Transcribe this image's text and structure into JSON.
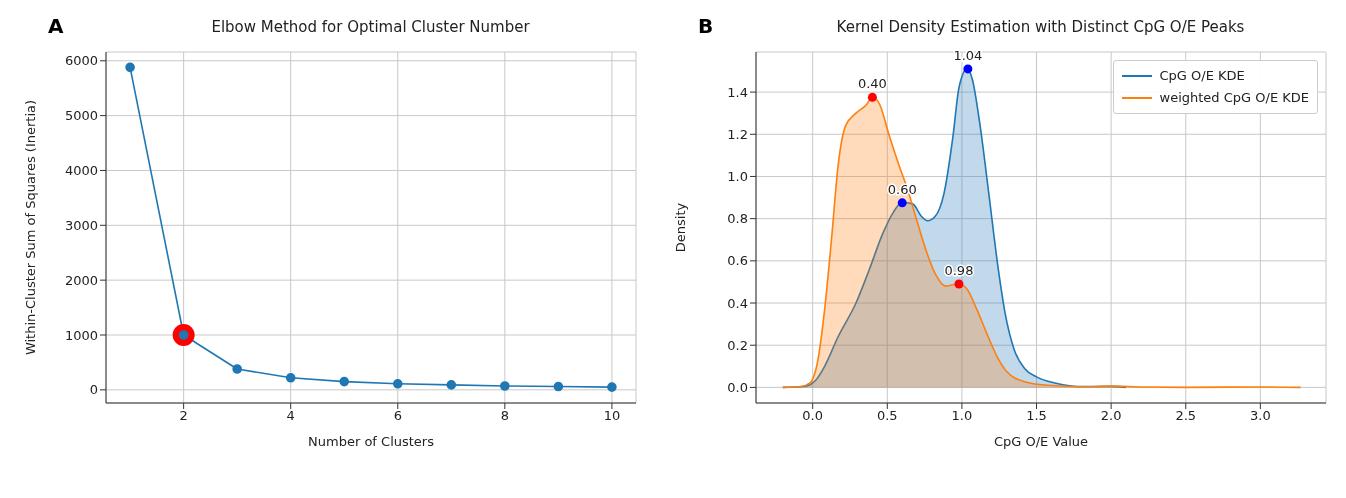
{
  "chart_data": [
    {
      "type": "line",
      "title": "Elbow Method for Optimal Cluster Number",
      "xlabel": "Number of Clusters",
      "ylabel": "Within-Cluster Sum of Squares (Inertia)",
      "annotations": [
        "A"
      ],
      "xlim": [
        0.55,
        10.45
      ],
      "xticks": [
        2,
        4,
        6,
        8,
        10
      ],
      "ylim": [
        -240,
        6160
      ],
      "yticks": [
        0,
        1000,
        2000,
        3000,
        4000,
        5000,
        6000
      ],
      "grid": true,
      "legend": false,
      "marker": "circle",
      "series": [
        {
          "type": "scatter",
          "color": "#ff0000",
          "x": [
            2
          ],
          "values": [
            1000
          ]
        },
        {
          "type": "line",
          "color": "#1f77b4",
          "x": [
            1,
            2,
            3,
            4,
            5,
            6,
            7,
            8,
            9,
            10
          ],
          "values": [
            5880,
            1000,
            380,
            220,
            150,
            110,
            90,
            70,
            60,
            50
          ]
        }
      ]
    },
    {
      "type": "area",
      "title": "Kernel Density Estimation with Distinct CpG O/E Peaks",
      "xlabel": "CpG O/E Value",
      "ylabel": "Density",
      "annotations": [
        "B",
        {
          "text": "0.60",
          "x": 0.6,
          "y": 0.875
        },
        {
          "text": "1.04",
          "x": 1.04,
          "y": 1.51
        },
        {
          "text": "0.40",
          "x": 0.4,
          "y": 1.375
        },
        {
          "text": "0.98",
          "x": 0.98,
          "y": 0.49
        }
      ],
      "xlim": [
        -0.38,
        3.44
      ],
      "xticks": [
        {
          "value": 0,
          "label": "0.0"
        },
        0.5,
        {
          "value": 1,
          "label": "1.0"
        },
        1.5,
        {
          "value": 2,
          "label": "2.0"
        },
        2.5,
        {
          "value": 3,
          "label": "3.0"
        }
      ],
      "ylim": [
        -0.074,
        1.59
      ],
      "yticks": [
        {
          "value": 0,
          "label": "0.0"
        },
        0.2,
        0.4,
        0.6,
        0.8,
        {
          "value": 1,
          "label": "1.0"
        },
        1.2,
        1.4
      ],
      "grid": true,
      "legend": "top right",
      "series": [
        {
          "type": "area",
          "name": "CpG O/E KDE",
          "color": "#1f77b4",
          "x": [
            -0.2,
            -0.06,
            0.02,
            0.08,
            0.17,
            0.29,
            0.38,
            0.47,
            0.54,
            0.6,
            0.67,
            0.73,
            0.77,
            0.82,
            0.88,
            0.94,
            0.98,
            1.035,
            1.07,
            1.12,
            1.18,
            1.24,
            1.29,
            1.35,
            1.42,
            1.5,
            1.63,
            1.81,
            2.0,
            2.1
          ],
          "values": [
            0,
            0.004,
            0.034,
            0.1,
            0.24,
            0.4,
            0.56,
            0.73,
            0.83,
            0.878,
            0.87,
            0.81,
            0.79,
            0.81,
            0.92,
            1.19,
            1.42,
            1.51,
            1.46,
            1.25,
            0.92,
            0.58,
            0.35,
            0.18,
            0.09,
            0.05,
            0.02,
            0.004,
            0.005,
            0
          ]
        },
        {
          "type": "area",
          "name": "weighted CpG O/E KDE",
          "color": "#ff7f0e",
          "x": [
            -0.2,
            -0.08,
            -0.02,
            0.035,
            0.08,
            0.127,
            0.17,
            0.22,
            0.29,
            0.36,
            0.4,
            0.45,
            0.51,
            0.58,
            0.635,
            0.69,
            0.75,
            0.82,
            0.89,
            0.977,
            1.03,
            1.1,
            1.17,
            1.24,
            1.3,
            1.42,
            1.58,
            1.8,
            2.0,
            2.2,
            2.5,
            3.0,
            3.27
          ],
          "values": [
            0,
            0.004,
            0.02,
            0.13,
            0.37,
            0.71,
            1.05,
            1.24,
            1.3,
            1.34,
            1.377,
            1.34,
            1.2,
            1.05,
            0.94,
            0.81,
            0.67,
            0.54,
            0.48,
            0.49,
            0.47,
            0.37,
            0.25,
            0.14,
            0.075,
            0.027,
            0.01,
            0.003,
            0.006,
            0.002,
            0,
            0.002,
            0
          ]
        },
        {
          "type": "scatter",
          "color": "#0000ff",
          "x": [
            0.6,
            1.04
          ],
          "values": [
            0.875,
            1.51
          ]
        },
        {
          "type": "scatter",
          "color": "#ff0000",
          "x": [
            0.4,
            0.98
          ],
          "values": [
            1.375,
            0.49
          ]
        }
      ]
    }
  ]
}
